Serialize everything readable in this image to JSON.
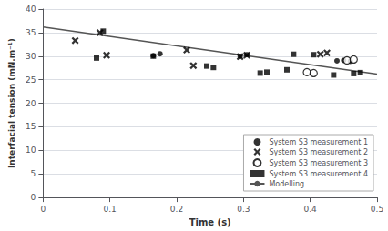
{
  "chart_data": {
    "type": "scatter",
    "xlabel": "Time (s)",
    "ylabel": "Interfacial tension (mN.m⁻¹)",
    "series": [
      {
        "name": "System S3 measurement 1",
        "type": "scatter",
        "marker": "circle",
        "color": "black",
        "x": [
          0.165,
          0.175,
          0.295,
          0.305,
          0.44,
          0.45,
          0.46
        ],
        "values": [
          30.1,
          30.5,
          30.0,
          30.3,
          29.0,
          29.1,
          28.9
        ]
      },
      {
        "name": "System S3 measurement 2",
        "type": "scatter",
        "marker": "x",
        "color": "black",
        "x": [
          0.048,
          0.085,
          0.095,
          0.215,
          0.225,
          0.295,
          0.305,
          0.415,
          0.425
        ],
        "values": [
          33.3,
          35.0,
          30.2,
          31.3,
          28.0,
          29.9,
          30.2,
          30.4,
          30.7
        ]
      },
      {
        "name": "System S3 measurement 3",
        "type": "scatter",
        "marker": "open_circle",
        "color": "black",
        "x": [
          0.395,
          0.405,
          0.455,
          0.465
        ],
        "values": [
          26.6,
          26.4,
          29.1,
          29.3
        ]
      },
      {
        "name": "System S3 measurement 4",
        "type": "scatter",
        "marker": "square",
        "color": "black",
        "x": [
          0.08,
          0.09,
          0.165,
          0.245,
          0.255,
          0.325,
          0.335,
          0.365,
          0.375,
          0.405,
          0.435,
          0.465,
          0.475
        ],
        "values": [
          29.6,
          35.3,
          30.0,
          27.9,
          27.6,
          26.4,
          26.6,
          27.1,
          30.4,
          30.3,
          26.0,
          26.3,
          26.5
        ]
      },
      {
        "name": "Modelling",
        "type": "line",
        "line_style": "solid",
        "color": "#555555",
        "x": [
          0.0,
          0.5
        ],
        "values": [
          36.2,
          26.2
        ]
      }
    ],
    "xlim": [
      0,
      0.5
    ],
    "ylim": [
      0,
      40
    ],
    "xticks": [
      0,
      0.1,
      0.2,
      0.3,
      0.4,
      0.5
    ],
    "yticks": [
      0,
      5,
      10,
      15,
      20,
      25,
      30,
      35,
      40
    ],
    "grid": true,
    "legend": "lower right"
  }
}
